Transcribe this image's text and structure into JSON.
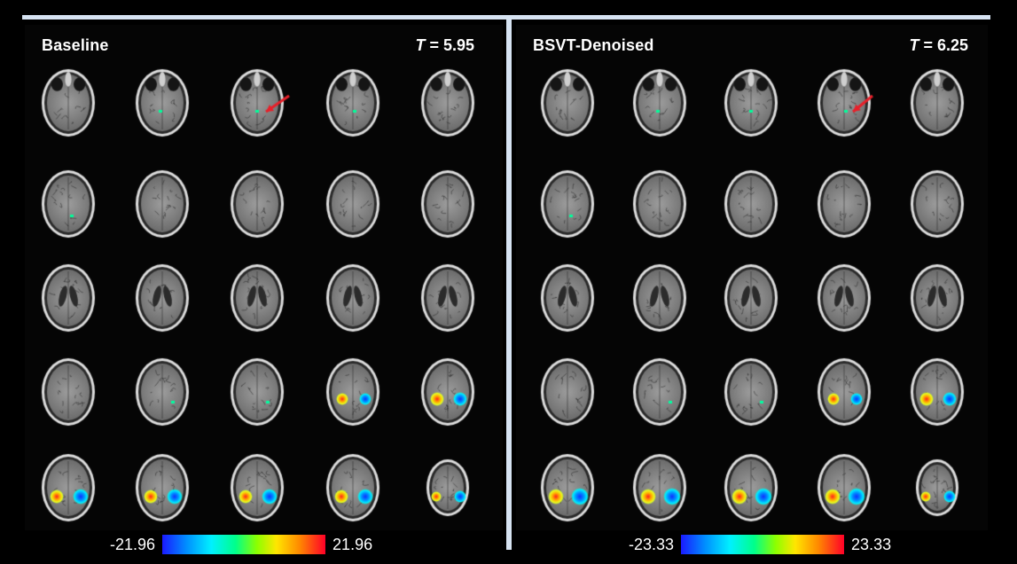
{
  "left_panel": {
    "title": "Baseline",
    "stat_symbol": "T",
    "stat_value": " = 5.95"
  },
  "right_panel": {
    "title": "BSVT-Denoised",
    "stat_symbol": "T",
    "stat_value": " = 6.25"
  },
  "left_colorbar": {
    "min_label": "-21.96",
    "max_label": "21.96"
  },
  "right_colorbar": {
    "min_label": "-23.33",
    "max_label": "23.33"
  },
  "colors": {
    "divider": "#d6e3f2",
    "background": "#000000",
    "arrow": "#e8202a"
  },
  "grid": {
    "rows": 5,
    "cols": 5
  }
}
